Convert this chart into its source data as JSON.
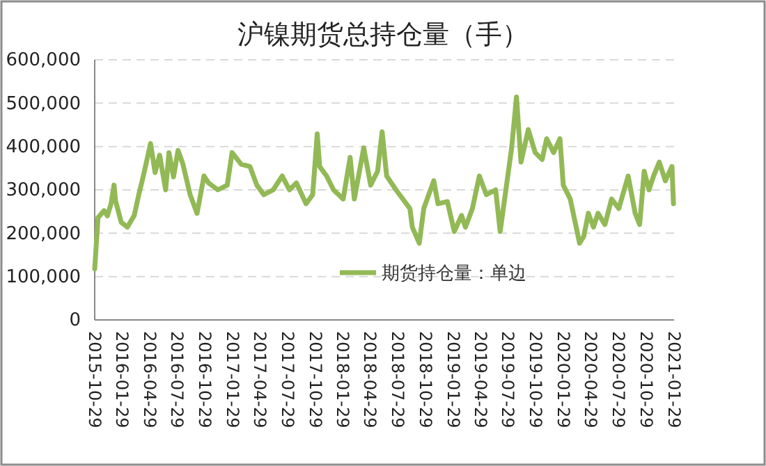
{
  "chart_data": {
    "type": "line",
    "title": "沪镍期货总持仓量（手）",
    "x": [
      "2015-10-29",
      "2015-11-09",
      "2015-11-29",
      "2015-12-10",
      "2015-12-22",
      "2016-01-01",
      "2016-01-06",
      "2016-01-25",
      "2016-02-14",
      "2016-03-08",
      "2016-03-23",
      "2016-04-07",
      "2016-05-01",
      "2016-05-16",
      "2016-05-31",
      "2016-06-20",
      "2016-07-01",
      "2016-07-16",
      "2016-07-31",
      "2016-08-16",
      "2016-09-09",
      "2016-10-02",
      "2016-10-25",
      "2016-11-09",
      "2016-12-10",
      "2017-01-10",
      "2017-01-26",
      "2017-02-25",
      "2017-03-26",
      "2017-04-18",
      "2017-05-11",
      "2017-06-11",
      "2017-07-11",
      "2017-08-04",
      "2017-08-27",
      "2017-09-28",
      "2017-10-20",
      "2017-11-04",
      "2017-11-12",
      "2017-12-05",
      "2017-12-28",
      "2018-01-29",
      "2018-02-21",
      "2018-03-07",
      "2018-04-07",
      "2018-04-30",
      "2018-05-23",
      "2018-06-07",
      "2018-06-22",
      "2018-07-23",
      "2018-09-07",
      "2018-09-15",
      "2018-10-08",
      "2018-10-23",
      "2018-11-25",
      "2018-12-09",
      "2019-01-09",
      "2019-02-01",
      "2019-02-25",
      "2019-03-10",
      "2019-04-02",
      "2019-04-25",
      "2019-05-18",
      "2019-06-18",
      "2019-07-03",
      "2019-07-26",
      "2019-08-10",
      "2019-08-26",
      "2019-09-10",
      "2019-10-04",
      "2019-10-27",
      "2019-11-19",
      "2019-12-04",
      "2019-12-27",
      "2020-01-17",
      "2020-01-28",
      "2020-02-20",
      "2020-03-22",
      "2020-04-05",
      "2020-04-20",
      "2020-05-07",
      "2020-05-22",
      "2020-06-14",
      "2020-07-06",
      "2020-07-30",
      "2020-08-30",
      "2020-09-22",
      "2020-10-07",
      "2020-10-22",
      "2020-11-07",
      "2020-11-22",
      "2020-12-11",
      "2020-12-31",
      "2021-01-22",
      "2021-01-27"
    ],
    "series": [
      {
        "name": "期货持仓量：单边",
        "color": "#92b956",
        "values": [
          118000,
          236000,
          252000,
          240000,
          268000,
          311000,
          275000,
          225000,
          214000,
          241000,
          289000,
          332000,
          407000,
          340000,
          380000,
          300000,
          386000,
          330000,
          391000,
          360000,
          289000,
          246000,
          332000,
          316000,
          300000,
          311000,
          386000,
          359000,
          354000,
          311000,
          289000,
          300000,
          332000,
          300000,
          316000,
          268000,
          289000,
          429000,
          354000,
          332000,
          300000,
          279000,
          375000,
          279000,
          397000,
          311000,
          343000,
          434000,
          332000,
          300000,
          257000,
          214000,
          177000,
          257000,
          321000,
          268000,
          273000,
          204000,
          241000,
          214000,
          257000,
          332000,
          289000,
          300000,
          204000,
          321000,
          397000,
          514000,
          364000,
          439000,
          386000,
          370000,
          418000,
          386000,
          418000,
          311000,
          279000,
          177000,
          193000,
          246000,
          214000,
          246000,
          220000,
          279000,
          257000,
          332000,
          246000,
          220000,
          343000,
          300000,
          332000,
          364000,
          321000,
          354000,
          268000
        ]
      }
    ],
    "xlim": [
      "2015-10-29",
      "2021-01-29"
    ],
    "xticks": [
      "2015-10-29",
      "2016-01-29",
      "2016-04-29",
      "2016-07-29",
      "2016-10-29",
      "2017-01-29",
      "2017-04-29",
      "2017-07-29",
      "2017-10-29",
      "2018-01-29",
      "2018-04-29",
      "2018-07-29",
      "2018-10-29",
      "2019-01-29",
      "2019-04-29",
      "2019-07-29",
      "2019-10-29",
      "2020-01-29",
      "2020-04-29",
      "2020-07-29",
      "2020-10-29",
      "2021-01-29"
    ],
    "ylim": [
      0,
      600000
    ],
    "yticks": [
      0,
      {
        "value": 100000,
        "label": "100,000"
      },
      {
        "value": 200000,
        "label": "200,000"
      },
      {
        "value": 300000,
        "label": "300,000"
      },
      {
        "value": 400000,
        "label": "400,000"
      },
      {
        "value": 500000,
        "label": "500,000"
      },
      {
        "value": 600000,
        "label": "600,000"
      }
    ],
    "grid": "y",
    "legend": "bottom right",
    "line_style": "solid"
  }
}
